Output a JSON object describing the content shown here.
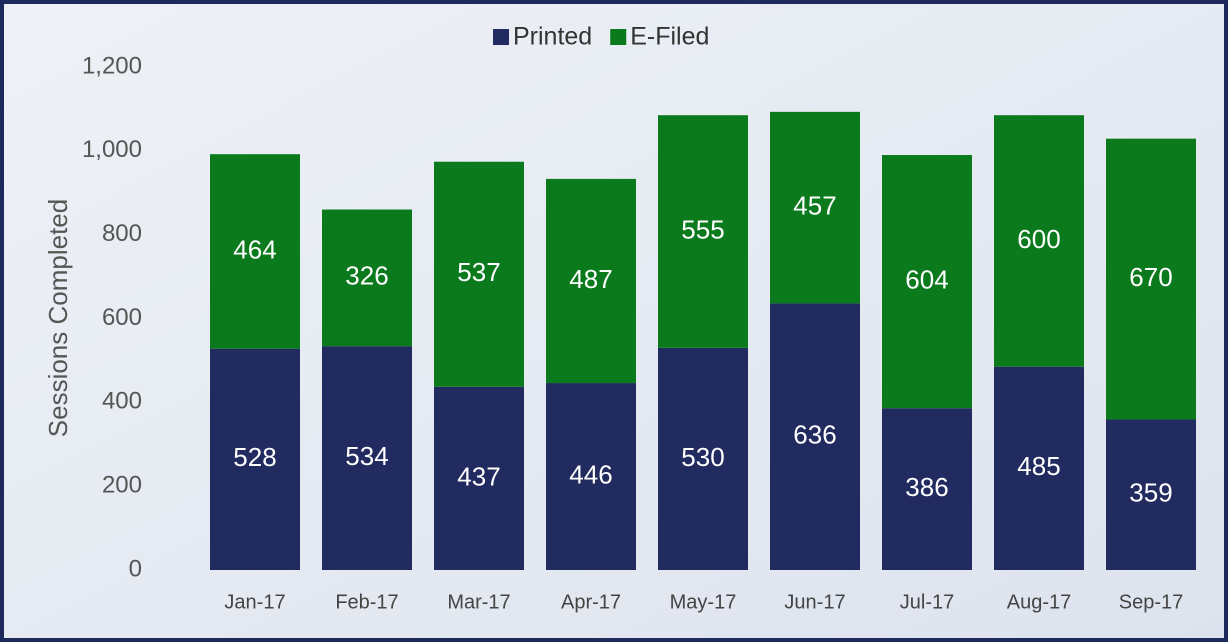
{
  "chart_data": {
    "type": "stacked_bar",
    "y_axis_label": "Sessions Completed",
    "categories": [
      "Jan-17",
      "Feb-17",
      "Mar-17",
      "Apr-17",
      "May-17",
      "Jun-17",
      "Jul-17",
      "Aug-17",
      "Sep-17"
    ],
    "series": [
      {
        "name": "Printed",
        "color": "#222b60",
        "values": [
          528,
          534,
          437,
          446,
          530,
          636,
          386,
          485,
          359
        ]
      },
      {
        "name": "E-Filed",
        "color": "#0a7a1d",
        "values": [
          464,
          326,
          537,
          487,
          555,
          457,
          604,
          600,
          670
        ]
      }
    ],
    "ylim": [
      0,
      1200
    ],
    "yticks": [
      0,
      200,
      400,
      600,
      800,
      {
        "value": 1000,
        "label": "1,000"
      },
      {
        "value": 1200,
        "label": "1,200"
      }
    ],
    "grid": false,
    "legend": "top"
  }
}
